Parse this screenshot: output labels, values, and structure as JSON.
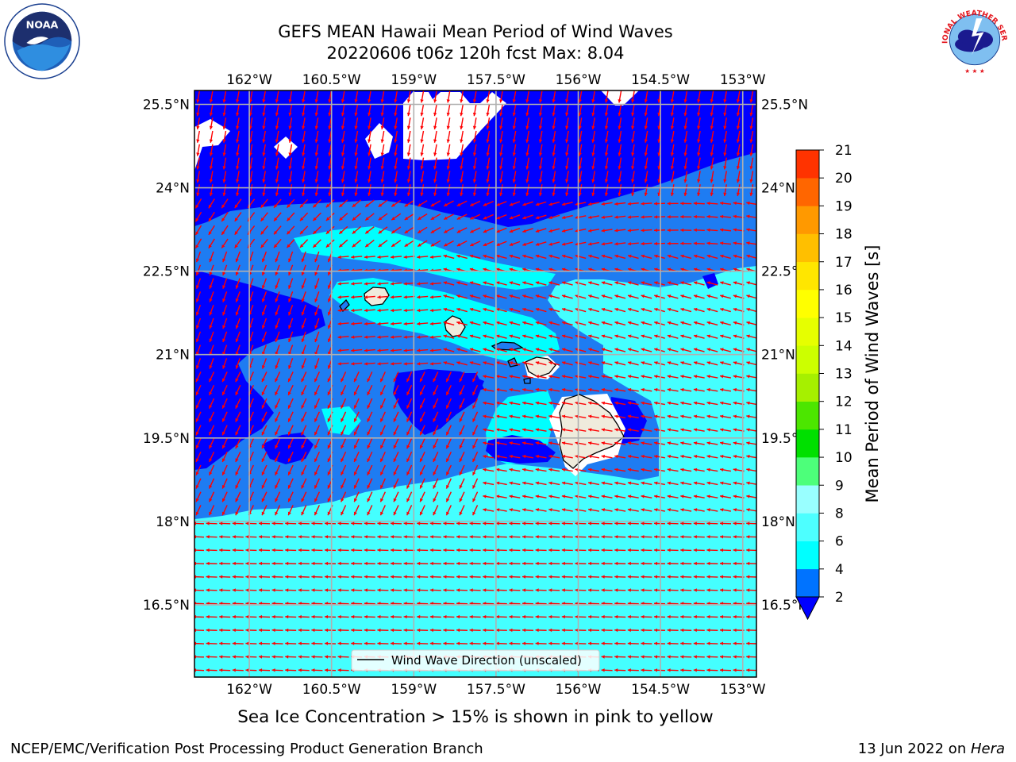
{
  "header": {
    "title_line1": "GEFS MEAN Hawaii Mean Period of Wind Waves",
    "title_line2": "20220606 t06z 120h fcst   Max: 8.04"
  },
  "logos": [
    {
      "name": "noaa-logo",
      "text": "NOAA"
    },
    {
      "name": "nws-logo",
      "text": "NATIONAL WEATHER SERVICE"
    }
  ],
  "chart_data": {
    "type": "heatmap",
    "title": "GEFS MEAN Hawaii Mean Period of Wind Waves",
    "subtitle": "20220606 t06z 120h fcst   Max: 8.04",
    "max_value": 8.04,
    "x_ticks": [
      "162°W",
      "160.5°W",
      "159°W",
      "157.5°W",
      "156°W",
      "154.5°W",
      "153°W"
    ],
    "x_tick_values": [
      -162,
      -160.5,
      -159,
      -157.5,
      -156,
      -154.5,
      -153
    ],
    "y_ticks": [
      "25.5°N",
      "24°N",
      "22.5°N",
      "21°N",
      "19.5°N",
      "18°N",
      "16.5°N"
    ],
    "y_tick_values": [
      25.5,
      24,
      22.5,
      21,
      19.5,
      18,
      16.5
    ],
    "xlim": [
      -163,
      -152.75
    ],
    "ylim": [
      15.2,
      25.75
    ],
    "grid": true,
    "colorbar": {
      "label": "Mean Period of Wind Waves [s]",
      "levels": [
        2,
        4,
        6,
        8,
        9,
        10,
        11,
        12,
        13,
        14,
        15,
        16,
        17,
        18,
        19,
        20,
        21
      ],
      "tick_labels": [
        "2",
        "4",
        "6",
        "8",
        "9",
        "10",
        "11",
        "12",
        "13",
        "14",
        "15",
        "16",
        "17",
        "18",
        "19",
        "20",
        "21"
      ],
      "colors": [
        "#0073ff",
        "#00ffff",
        "#4dffff",
        "#99ffff",
        "#4dff7a",
        "#00e000",
        "#4ce600",
        "#a6f000",
        "#ccff00",
        "#e6ff00",
        "#ffff00",
        "#ffe600",
        "#ffbf00",
        "#ff9900",
        "#ff6600",
        "#ff3300",
        "#ff0000"
      ],
      "under_color": "#0000ff",
      "extend": "min"
    },
    "fill_colors": {
      "period_lt_2": "#0000ff",
      "period_2_4": "#1e7cf2",
      "period_4_6": "#00ffff",
      "period_6_8": "#44ffff",
      "no_data": "#ffffff",
      "land": "#efebdc"
    },
    "arrow_color": "#ff0000",
    "legend": {
      "label": "Wind Wave Direction (unscaled)",
      "location": "lower-center"
    },
    "islands": [
      "Kauai",
      "Oahu",
      "Molokai",
      "Maui",
      "Hawaii"
    ]
  },
  "footer": {
    "subtitle": "Sea Ice Concentration > 15% is shown in pink to yellow",
    "credit": "NCEP/EMC/Verification Post Processing Product Generation Branch",
    "date": "13 Jun 2022 on ",
    "machine": "Hera"
  }
}
